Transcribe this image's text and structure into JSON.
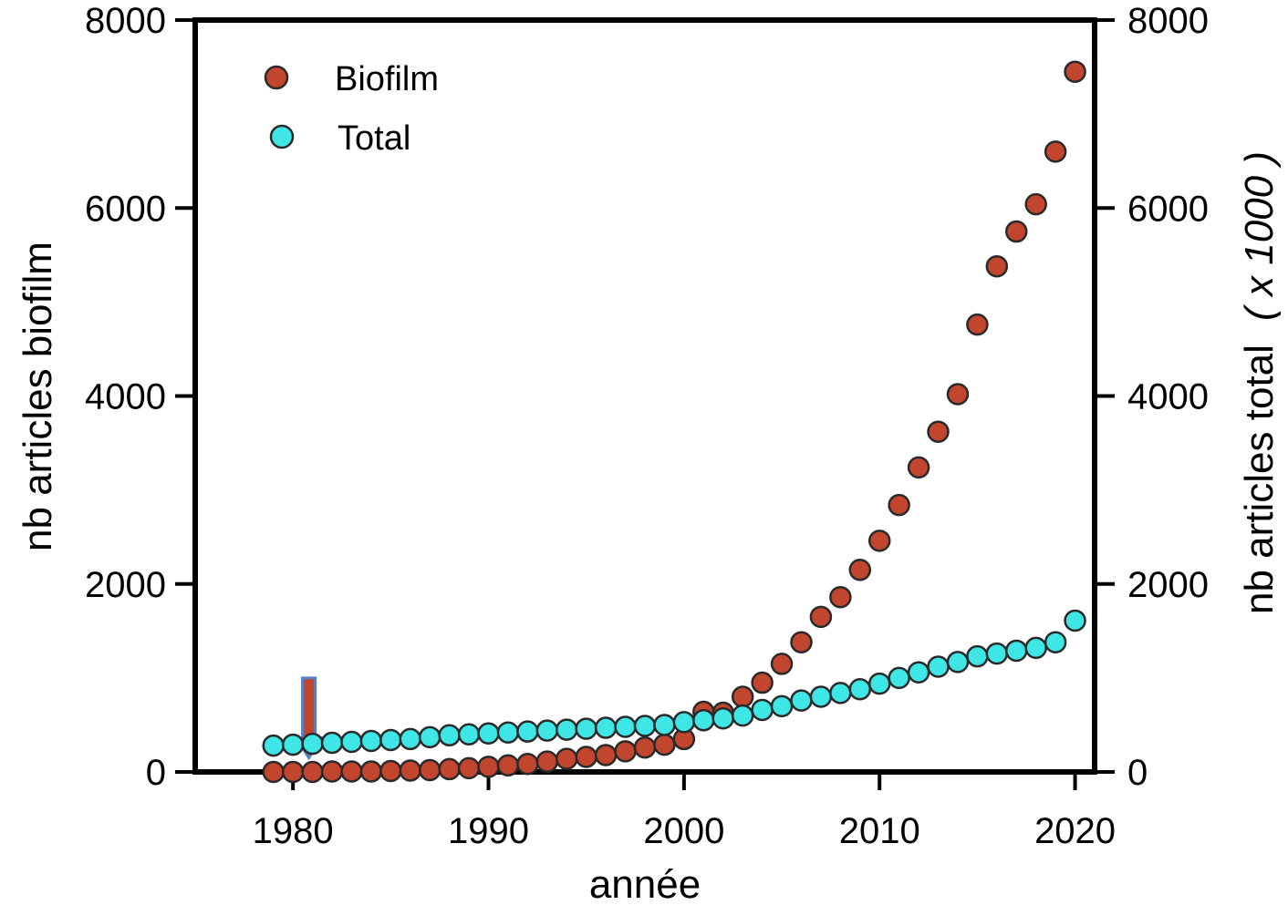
{
  "chart_data": {
    "type": "scatter",
    "title": "",
    "xlabel": "année",
    "ylabel_left": "nb articles biofilm",
    "ylabel_right_main": "nb articles total",
    "ylabel_right_unit": "( x 1000 )",
    "xlim": [
      1975,
      2021
    ],
    "ylim_left": [
      0,
      8000
    ],
    "ylim_right": [
      0,
      8000
    ],
    "x_ticks": [
      1980,
      1990,
      2000,
      2010,
      2020
    ],
    "y_ticks_left": [
      0,
      2000,
      4000,
      6000,
      8000
    ],
    "y_ticks_right": [
      0,
      2000,
      4000,
      6000,
      8000
    ],
    "grid": false,
    "legend_position": "top-left",
    "colors": {
      "biofilm": "#c2452d",
      "total": "#3ee6e6",
      "marker_edge": "#2a2a2a",
      "arrow": "#c2452d",
      "arrow_edge": "#5a7fc0"
    },
    "arrow_annotation": {
      "x": 1981,
      "y_top": 1000,
      "y_tip": 150
    },
    "x": [
      1979,
      1980,
      1981,
      1982,
      1983,
      1984,
      1985,
      1986,
      1987,
      1988,
      1989,
      1990,
      1991,
      1992,
      1993,
      1994,
      1995,
      1996,
      1997,
      1998,
      1999,
      2000,
      2001,
      2002,
      2003,
      2004,
      2005,
      2006,
      2007,
      2008,
      2009,
      2010,
      2011,
      2012,
      2013,
      2014,
      2015,
      2016,
      2017,
      2018,
      2019,
      2020
    ],
    "series": [
      {
        "name": "Biofilm",
        "axis": "left",
        "values": [
          0,
          0,
          0,
          5,
          5,
          5,
          10,
          15,
          20,
          30,
          40,
          55,
          70,
          85,
          110,
          140,
          160,
          180,
          220,
          260,
          290,
          350,
          640,
          630,
          800,
          950,
          1150,
          1380,
          1650,
          1860,
          2150,
          2460,
          2840,
          3240,
          3620,
          4020,
          4760,
          5380,
          5750,
          6040,
          6600,
          7450
        ]
      },
      {
        "name": "Total",
        "axis": "right",
        "values": [
          280,
          290,
          300,
          310,
          320,
          330,
          340,
          350,
          370,
          390,
          400,
          410,
          420,
          430,
          440,
          450,
          460,
          470,
          480,
          490,
          500,
          530,
          550,
          570,
          600,
          660,
          700,
          760,
          800,
          840,
          880,
          940,
          1000,
          1060,
          1120,
          1170,
          1230,
          1260,
          1290,
          1320,
          1380,
          1610
        ]
      }
    ]
  }
}
